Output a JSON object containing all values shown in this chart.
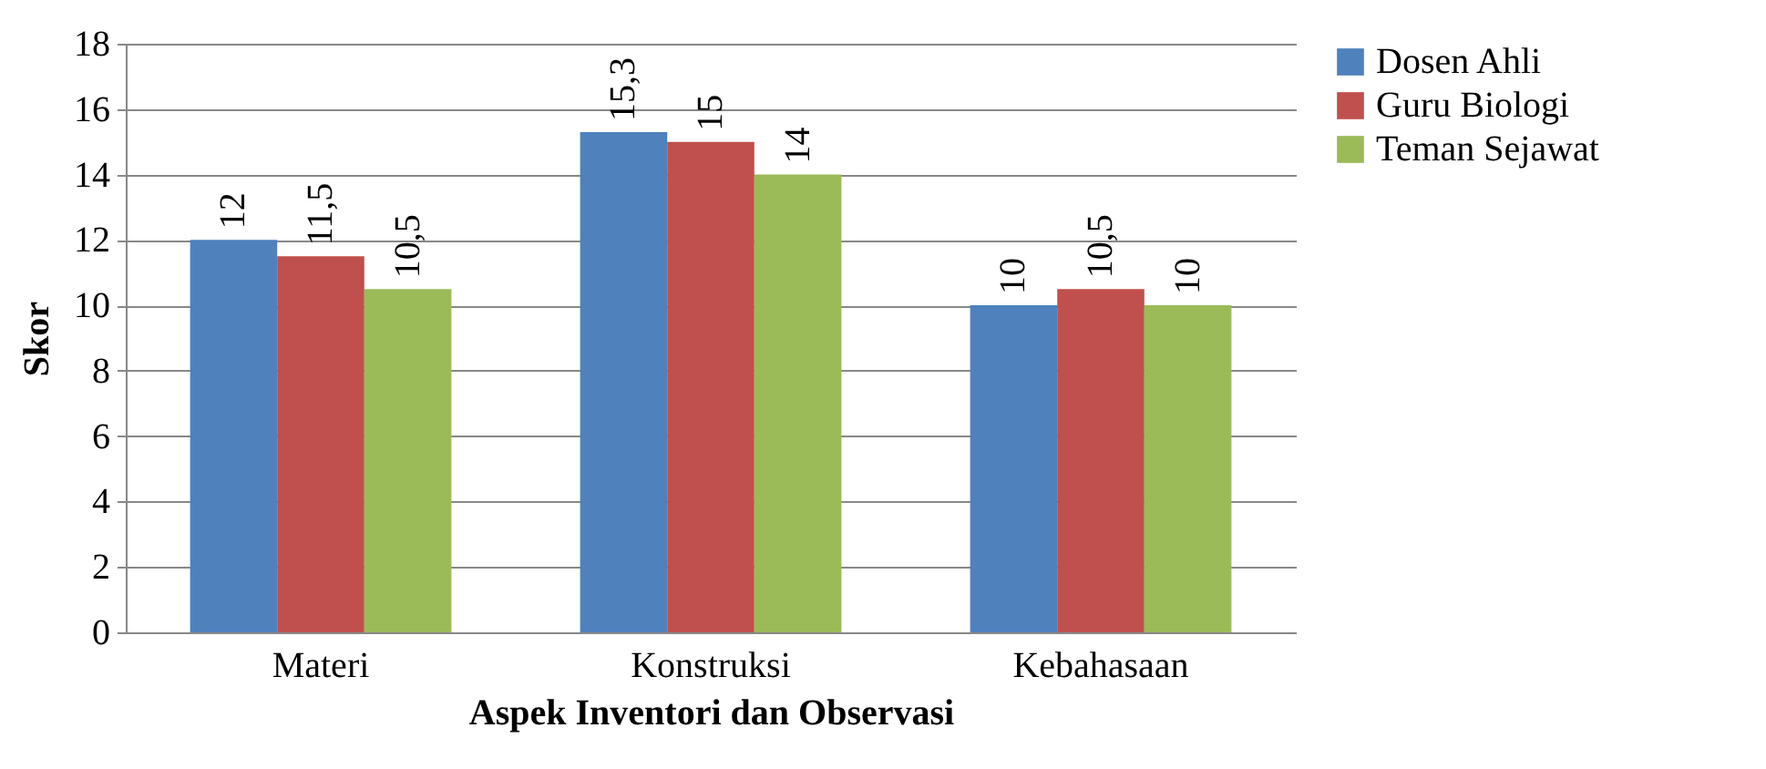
{
  "chart_data": {
    "type": "bar",
    "xlabel": "Aspek Inventori dan Observasi",
    "ylabel": "Skor",
    "categories": [
      "Materi",
      "Konstruksi",
      "Kebahasaan"
    ],
    "series": [
      {
        "name": "Dosen Ahli",
        "color": "#4f81bd",
        "values": [
          12,
          15.3,
          10
        ],
        "value_labels": [
          "12",
          "15,3",
          "10"
        ]
      },
      {
        "name": "Guru Biologi",
        "color": "#c0504d",
        "values": [
          11.5,
          15,
          10.5
        ],
        "value_labels": [
          "11,5",
          "15",
          "10,5"
        ]
      },
      {
        "name": "Teman Sejawat",
        "color": "#9bbb59",
        "values": [
          10.5,
          14,
          10
        ],
        "value_labels": [
          "10,5",
          "14",
          "10"
        ]
      }
    ],
    "ylim": [
      0,
      18
    ],
    "yticks": [
      0,
      2,
      4,
      6,
      8,
      10,
      12,
      14,
      16,
      18
    ],
    "grid": "y",
    "legend": "right"
  }
}
